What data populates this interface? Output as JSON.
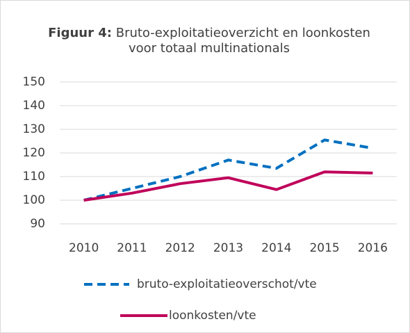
{
  "chart_data": {
    "type": "line",
    "title_label": "Figuur 4:",
    "title": "Bruto-exploitatieoverzicht en loonkosten voor totaal multinationals",
    "categories": [
      "2010",
      "2011",
      "2012",
      "2013",
      "2014",
      "2015",
      "2016"
    ],
    "series": [
      {
        "name": "bruto-exploitatieoverschot/vte",
        "color": "#0070c0",
        "line_style": "dashed",
        "values": [
          100,
          105,
          110,
          117,
          113.5,
          125.5,
          122
        ]
      },
      {
        "name": "loonkosten/vte",
        "color": "#c0005a",
        "line_style": "solid",
        "values": [
          100,
          103,
          107,
          109.5,
          104.5,
          112,
          111.5
        ]
      }
    ],
    "ylim": [
      90,
      150
    ],
    "yticks": [
      90,
      100,
      110,
      120,
      130,
      140,
      150
    ],
    "grid": true,
    "legend": "bottom"
  }
}
